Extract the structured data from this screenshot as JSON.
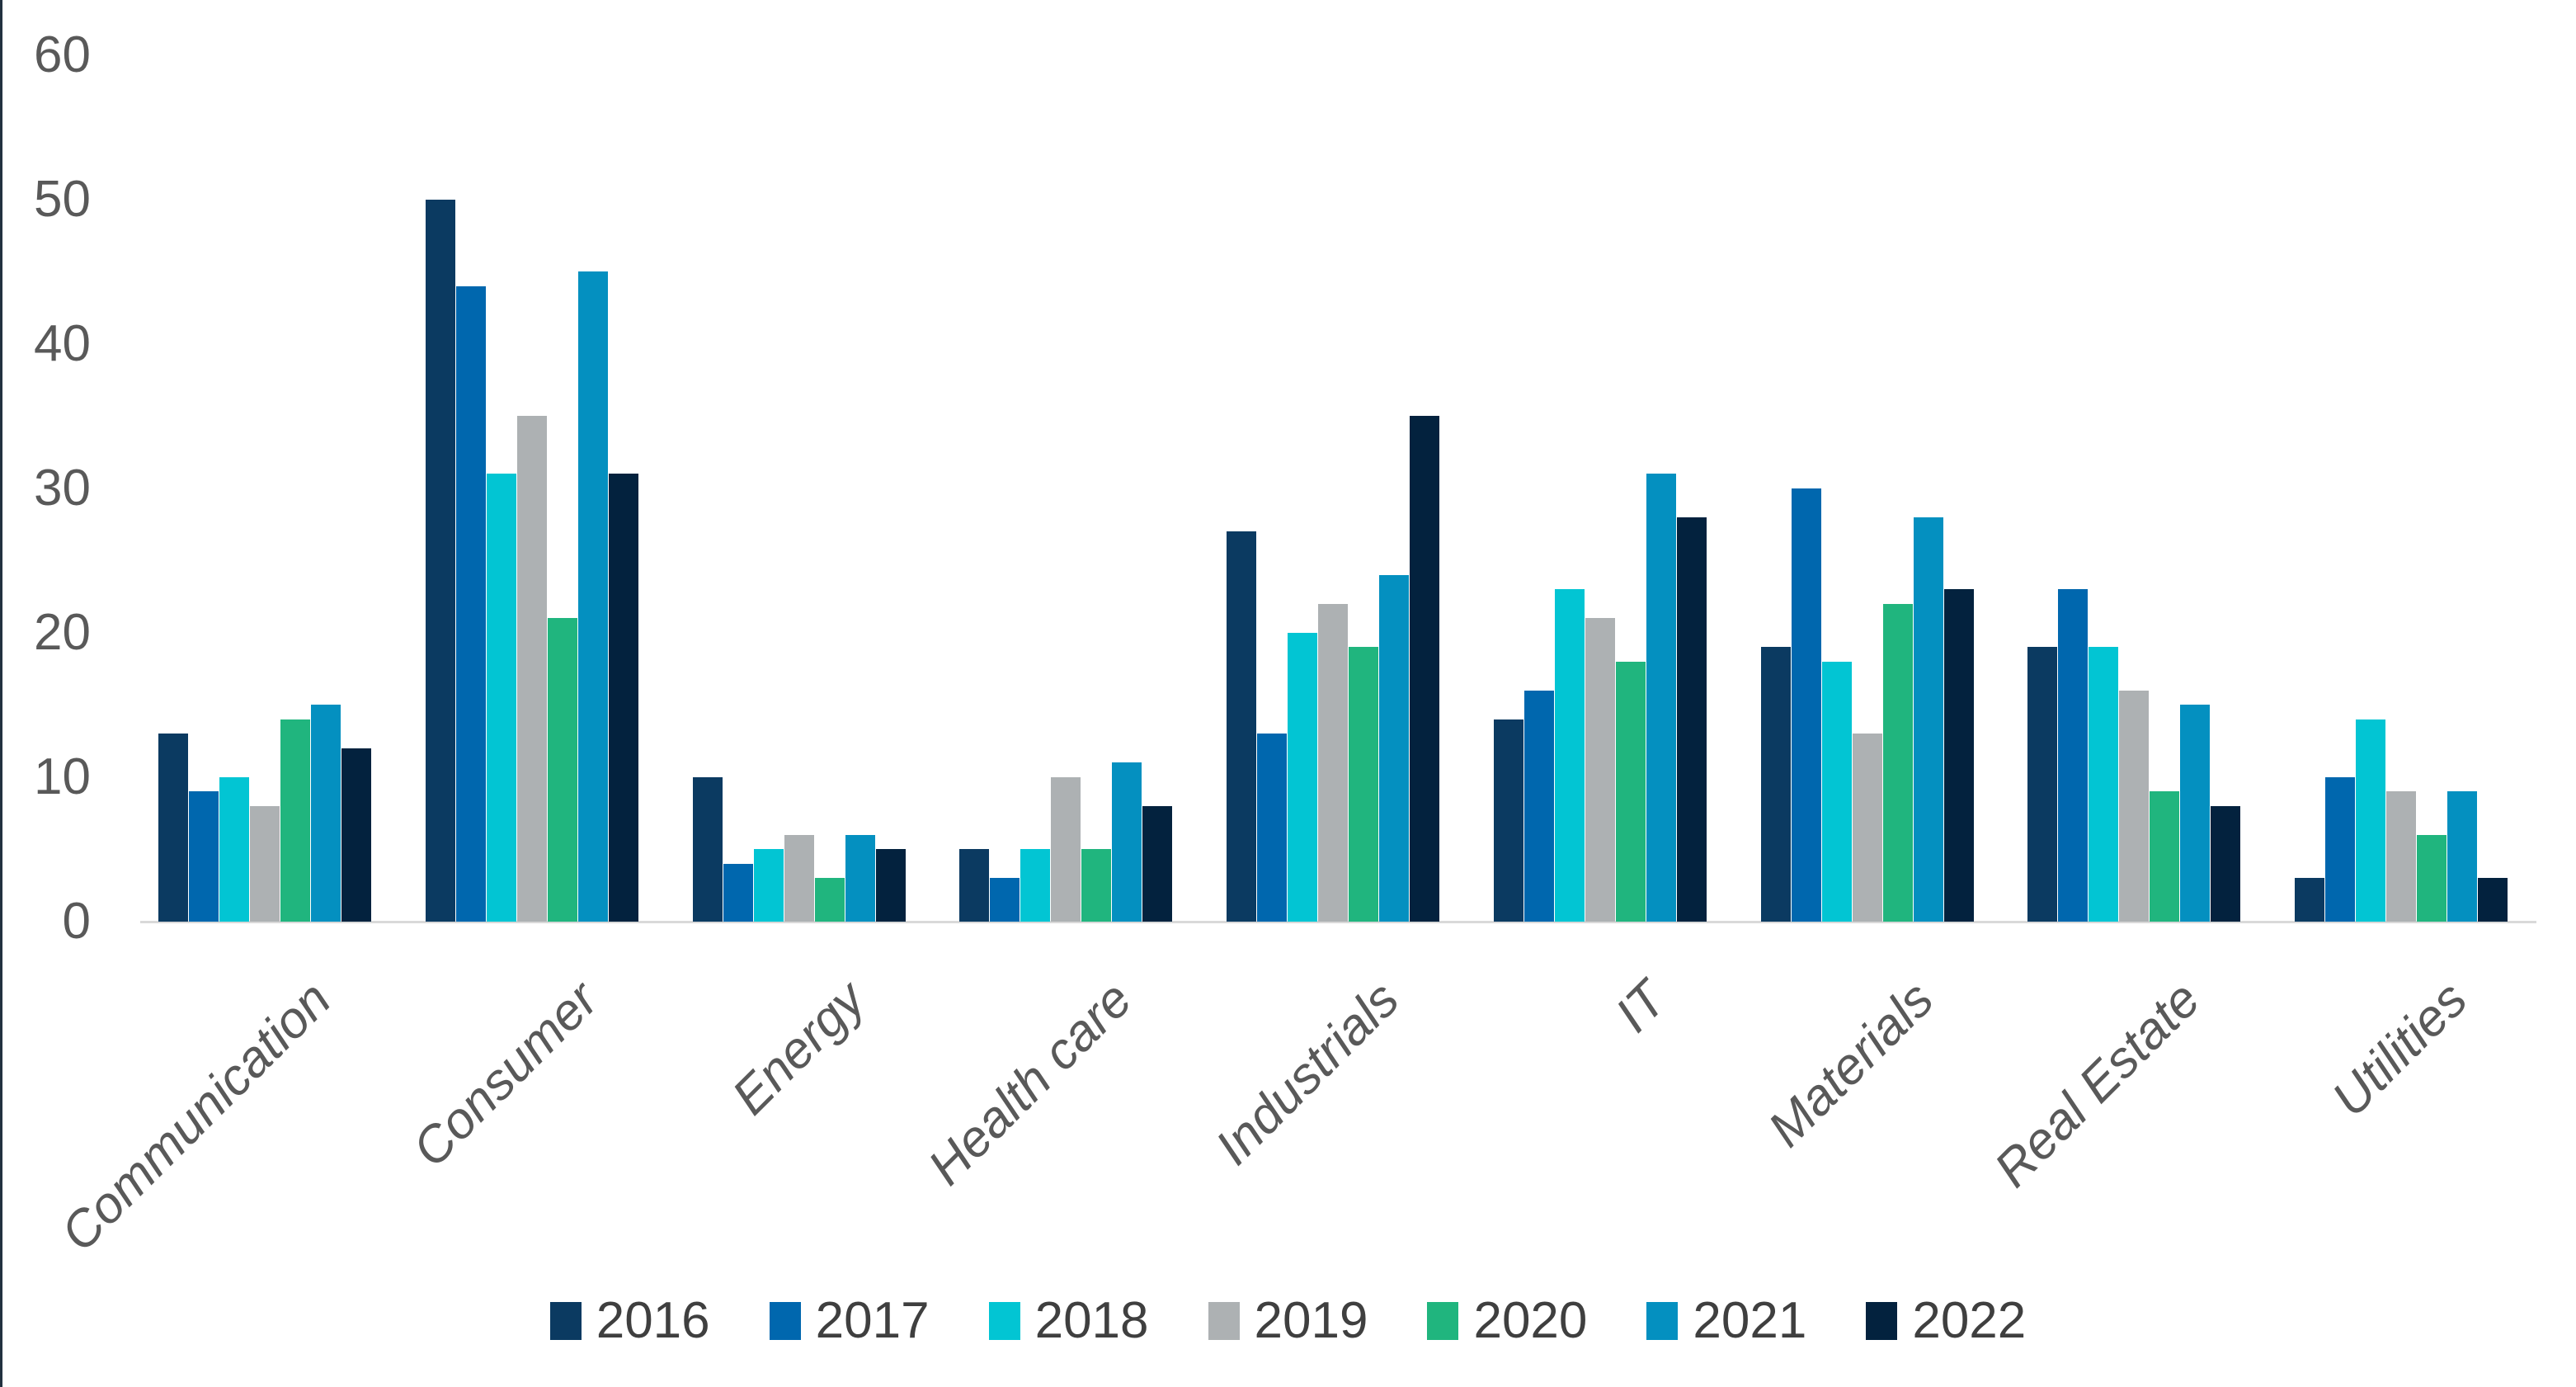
{
  "chart_data": {
    "type": "bar",
    "title": "",
    "xlabel": "",
    "ylabel": "",
    "categories": [
      "Communication",
      "Consumer",
      "Energy",
      "Health care",
      "Industrials",
      "IT",
      "Materials",
      "Real Estate",
      "Utilities"
    ],
    "series": [
      {
        "name": "2016",
        "color": "#0b3a61",
        "values": [
          13,
          50,
          10,
          5,
          27,
          14,
          19,
          19,
          3
        ]
      },
      {
        "name": "2017",
        "color": "#0067ae",
        "values": [
          9,
          44,
          4,
          3,
          13,
          16,
          30,
          23,
          10
        ]
      },
      {
        "name": "2018",
        "color": "#02c5d3",
        "values": [
          10,
          31,
          5,
          5,
          20,
          23,
          18,
          19,
          14
        ]
      },
      {
        "name": "2019",
        "color": "#adb1b3",
        "values": [
          8,
          35,
          6,
          10,
          22,
          21,
          13,
          16,
          9
        ]
      },
      {
        "name": "2020",
        "color": "#20b57e",
        "values": [
          14,
          21,
          3,
          5,
          19,
          18,
          22,
          9,
          6
        ]
      },
      {
        "name": "2021",
        "color": "#0490c0",
        "values": [
          15,
          45,
          6,
          11,
          24,
          31,
          28,
          15,
          9
        ]
      },
      {
        "name": "2022",
        "color": "#03223e",
        "values": [
          12,
          31,
          5,
          8,
          35,
          28,
          23,
          8,
          3
        ]
      }
    ],
    "ylim": [
      0,
      60
    ],
    "yticks": [
      "0",
      "10",
      "20",
      "30",
      "40",
      "50",
      "60"
    ],
    "grid": false,
    "legend_position": "bottom"
  },
  "axis": {
    "tick_label_color": "#595959",
    "category_label_color": "#595959",
    "baseline_color": "#d9d9d9",
    "left_border_color": "#223140"
  },
  "legend": {
    "text_color": "#3f3f3f"
  }
}
